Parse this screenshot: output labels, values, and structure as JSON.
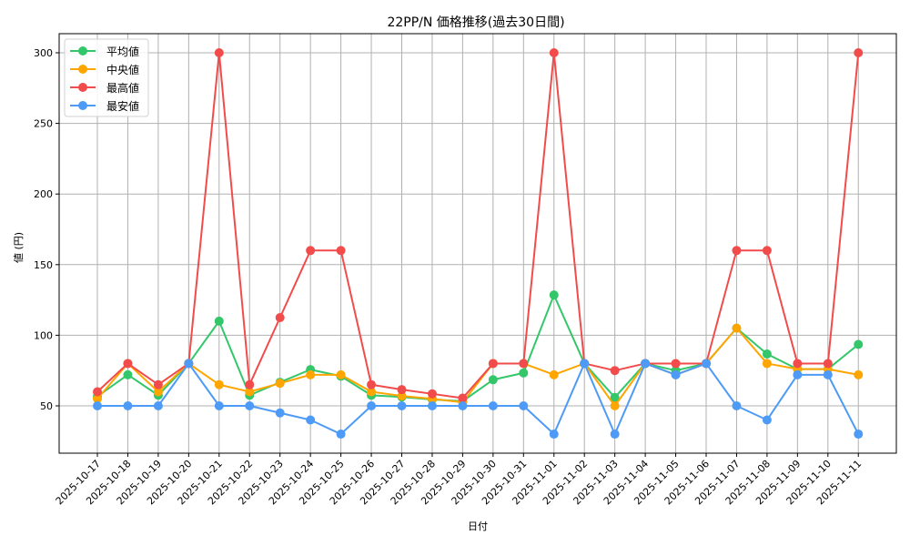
{
  "chart_data": {
    "type": "line",
    "title": "22PP/N 価格推移(過去30日間)",
    "xlabel": "日付",
    "ylabel": "値 (円)",
    "ylim": [
      15,
      313
    ],
    "yticks": [
      50,
      100,
      150,
      200,
      250,
      300
    ],
    "grid": true,
    "legend_position": "upper left",
    "categories": [
      "2025-10-17",
      "2025-10-18",
      "2025-10-19",
      "2025-10-20",
      "2025-10-21",
      "2025-10-22",
      "2025-10-23",
      "2025-10-24",
      "2025-10-25",
      "2025-10-26",
      "2025-10-27",
      "2025-10-28",
      "2025-10-29",
      "2025-10-30",
      "2025-10-31",
      "2025-11-01",
      "2025-11-02",
      "2025-11-03",
      "2025-11-04",
      "2025-11-05",
      "2025-11-06",
      "2025-11-07",
      "2025-11-08",
      "2025-11-09",
      "2025-11-10",
      "2025-11-11"
    ],
    "series": [
      {
        "name": "平均値",
        "color": "#33c76a",
        "values": [
          56.7,
          72,
          57.5,
          80,
          110,
          57.5,
          66.7,
          75.7,
          71,
          57.5,
          56.3,
          54.5,
          53.3,
          68.5,
          73.3,
          128.5,
          80,
          56,
          80,
          75,
          80,
          105,
          86.7,
          76,
          76,
          93.5
        ]
      },
      {
        "name": "中央値",
        "color": "#ffa500",
        "values": [
          55,
          80,
          60,
          80,
          65,
          60,
          66,
          72,
          72,
          60,
          57,
          55,
          52.5,
          80,
          80,
          72,
          80,
          50,
          80,
          72,
          80,
          105,
          80,
          76,
          76,
          72
        ]
      },
      {
        "name": "最高値",
        "color": "#f24b4b",
        "values": [
          60,
          80,
          65,
          80,
          300,
          65,
          112.5,
          160,
          160,
          65,
          61.5,
          58.5,
          55.5,
          80,
          80,
          300,
          80,
          75,
          80,
          80,
          80,
          160,
          160,
          80,
          80,
          300
        ]
      },
      {
        "name": "最安値",
        "color": "#4d9bf7",
        "values": [
          50,
          50,
          50,
          80,
          50,
          50,
          45,
          40,
          30,
          50,
          50,
          50,
          50,
          50,
          50,
          30,
          80,
          30,
          80,
          72,
          80,
          50,
          40,
          72,
          72,
          30
        ]
      }
    ]
  }
}
